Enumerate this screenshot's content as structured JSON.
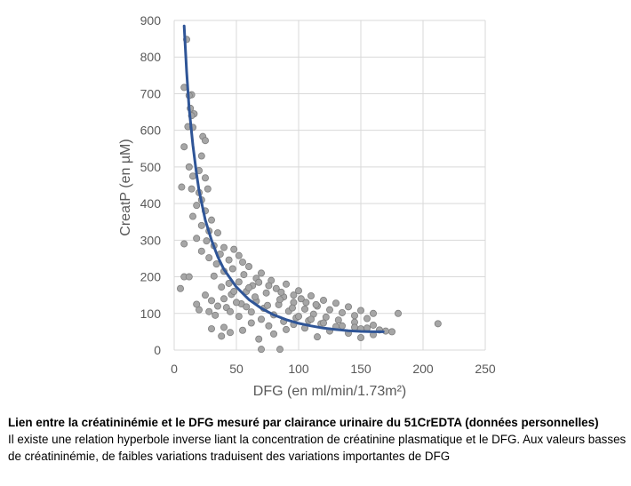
{
  "chart_data": {
    "type": "scatter",
    "title": "",
    "xlabel": "DFG (en ml/min/1.73m²)",
    "ylabel": "CreatP (en µM)",
    "xlim": [
      0,
      250
    ],
    "ylim": [
      0,
      900
    ],
    "xticks": [
      "0",
      "50",
      "100",
      "150",
      "200",
      "250"
    ],
    "yticks": [
      "0",
      "100",
      "200",
      "300",
      "400",
      "500",
      "600",
      "700",
      "800",
      "900"
    ],
    "grid": true,
    "legend": "none",
    "point_color": "#A6A6A6",
    "point_edge_color": "#7F7F7F",
    "curve_color": "#2F5597",
    "points_sample": [
      [
        10,
        848
      ],
      [
        8,
        717
      ],
      [
        14,
        697
      ],
      [
        12,
        695
      ],
      [
        13,
        660
      ],
      [
        16,
        645
      ],
      [
        14,
        640
      ],
      [
        11,
        610
      ],
      [
        15,
        608
      ],
      [
        23,
        583
      ],
      [
        25,
        572
      ],
      [
        8,
        555
      ],
      [
        22,
        530
      ],
      [
        12,
        500
      ],
      [
        20,
        490
      ],
      [
        15,
        475
      ],
      [
        25,
        470
      ],
      [
        6,
        445
      ],
      [
        14,
        440
      ],
      [
        27,
        440
      ],
      [
        20,
        430
      ],
      [
        22,
        410
      ],
      [
        18,
        395
      ],
      [
        25,
        380
      ],
      [
        15,
        365
      ],
      [
        30,
        355
      ],
      [
        22,
        340
      ],
      [
        28,
        325
      ],
      [
        35,
        320
      ],
      [
        18,
        305
      ],
      [
        26,
        298
      ],
      [
        8,
        290
      ],
      [
        32,
        285
      ],
      [
        40,
        280
      ],
      [
        48,
        275
      ],
      [
        22,
        270
      ],
      [
        37,
        262
      ],
      [
        52,
        258
      ],
      [
        28,
        252
      ],
      [
        44,
        246
      ],
      [
        55,
        240
      ],
      [
        34,
        235
      ],
      [
        60,
        228
      ],
      [
        47,
        222
      ],
      [
        40,
        215
      ],
      [
        70,
        210
      ],
      [
        56,
        206
      ],
      [
        32,
        202
      ],
      [
        8,
        200
      ],
      [
        12,
        200
      ],
      [
        66,
        196
      ],
      [
        78,
        190
      ],
      [
        52,
        186
      ],
      [
        44,
        182
      ],
      [
        90,
        180
      ],
      [
        63,
        176
      ],
      [
        38,
        172
      ],
      [
        82,
        168
      ],
      [
        5,
        168
      ],
      [
        100,
        162
      ],
      [
        58,
        160
      ],
      [
        74,
        156
      ],
      [
        46,
        152
      ],
      [
        110,
        148
      ],
      [
        88,
        145
      ],
      [
        102,
        140
      ],
      [
        120,
        136
      ],
      [
        66,
        134
      ],
      [
        96,
        130
      ],
      [
        130,
        128
      ],
      [
        54,
        126
      ],
      [
        84,
        124
      ],
      [
        115,
        120
      ],
      [
        140,
        118
      ],
      [
        42,
        116
      ],
      [
        72,
        114
      ],
      [
        105,
        112
      ],
      [
        125,
        110
      ],
      [
        150,
        108
      ],
      [
        92,
        106
      ],
      [
        62,
        104
      ],
      [
        135,
        102
      ],
      [
        160,
        100
      ],
      [
        180,
        100
      ],
      [
        112,
        98
      ],
      [
        80,
        96
      ],
      [
        145,
        94
      ],
      [
        52,
        92
      ],
      [
        122,
        90
      ],
      [
        98,
        88
      ],
      [
        155,
        86
      ],
      [
        70,
        84
      ],
      [
        132,
        82
      ],
      [
        108,
        80
      ],
      [
        88,
        78
      ],
      [
        145,
        76
      ],
      [
        62,
        74
      ],
      [
        118,
        72
      ],
      [
        212,
        72
      ],
      [
        96,
        70
      ],
      [
        160,
        68
      ],
      [
        76,
        66
      ],
      [
        130,
        64
      ],
      [
        40,
        62
      ],
      [
        105,
        60
      ],
      [
        150,
        58
      ],
      [
        30,
        58
      ],
      [
        90,
        56
      ],
      [
        165,
        55
      ],
      [
        55,
        54
      ],
      [
        125,
        52
      ],
      [
        175,
        50
      ],
      [
        45,
        48
      ],
      [
        140,
        46
      ],
      [
        80,
        44
      ],
      [
        160,
        42
      ],
      [
        38,
        38
      ],
      [
        150,
        34
      ],
      [
        115,
        36
      ],
      [
        68,
        30
      ],
      [
        85,
        2
      ],
      [
        70,
        2
      ],
      [
        20,
        110
      ],
      [
        18,
        125
      ],
      [
        25,
        150
      ],
      [
        30,
        135
      ],
      [
        35,
        120
      ],
      [
        28,
        105
      ],
      [
        33,
        95
      ],
      [
        45,
        105
      ],
      [
        50,
        130
      ],
      [
        58,
        118
      ],
      [
        65,
        145
      ],
      [
        75,
        122
      ],
      [
        85,
        138
      ],
      [
        95,
        115
      ],
      [
        100,
        92
      ],
      [
        110,
        84
      ],
      [
        120,
        74
      ],
      [
        135,
        66
      ],
      [
        145,
        62
      ],
      [
        155,
        60
      ],
      [
        170,
        52
      ],
      [
        40,
        140
      ],
      [
        48,
        160
      ],
      [
        60,
        170
      ],
      [
        68,
        185
      ],
      [
        76,
        176
      ],
      [
        86,
        158
      ],
      [
        96,
        150
      ],
      [
        106,
        130
      ],
      [
        114,
        124
      ]
    ],
    "fit_curve": {
      "label": "",
      "points": [
        [
          8,
          885
        ],
        [
          10,
          760
        ],
        [
          12,
          660
        ],
        [
          15,
          560
        ],
        [
          18,
          480
        ],
        [
          20,
          435
        ],
        [
          25,
          355
        ],
        [
          30,
          300
        ],
        [
          35,
          255
        ],
        [
          40,
          220
        ],
        [
          50,
          172
        ],
        [
          60,
          138
        ],
        [
          70,
          114
        ],
        [
          80,
          96
        ],
        [
          90,
          83
        ],
        [
          100,
          73
        ],
        [
          110,
          66
        ],
        [
          120,
          60
        ],
        [
          130,
          56
        ],
        [
          140,
          53
        ],
        [
          150,
          51
        ],
        [
          160,
          50
        ],
        [
          168,
          50
        ]
      ]
    }
  },
  "caption": {
    "bold": "Lien entre la créatininémie et le DFG mesuré par clairance urinaire du 51CrEDTA (données personnelles)",
    "text": "Il existe une relation hyperbole inverse liant la concentration de créatinine plasmatique et  le DFG. Aux valeurs basses de créatininémie, de faibles variations traduisent des variations importantes de DFG"
  }
}
